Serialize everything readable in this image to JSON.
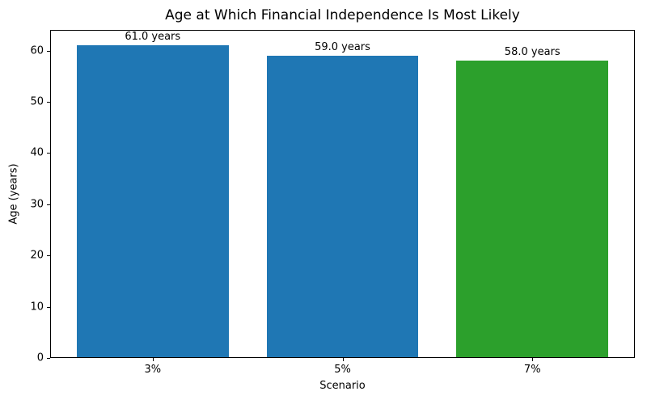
{
  "chart_data": {
    "type": "bar",
    "title": "Age at Which Financial Independence Is Most Likely",
    "xlabel": "Scenario",
    "ylabel": "Age (years)",
    "categories": [
      "3%",
      "5%",
      "7%"
    ],
    "values": [
      61.0,
      59.0,
      58.0
    ],
    "bar_labels": [
      "61.0 years",
      "59.0 years",
      "58.0 years"
    ],
    "bar_colors": [
      "#1f77b4",
      "#1f77b4",
      "#2ca02c"
    ],
    "yticks": [
      0,
      10,
      20,
      30,
      40,
      50,
      60
    ],
    "ylim": [
      0,
      64.05
    ],
    "grid": false,
    "legend": "none",
    "background_color": "#ffffff",
    "spine_color": "#000000",
    "text_color": "#000000"
  }
}
